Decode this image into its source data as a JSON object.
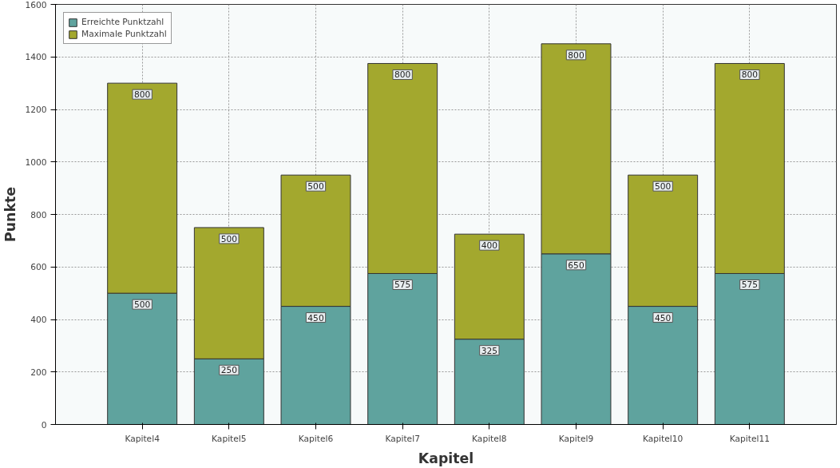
{
  "chart_data": {
    "type": "bar",
    "stacked": true,
    "xlabel": "Kapitel",
    "ylabel": "Punkte",
    "categories": [
      "Kapitel4",
      "Kapitel5",
      "Kapitel6",
      "Kapitel7",
      "Kapitel8",
      "Kapitel9",
      "Kapitel10",
      "Kapitel11"
    ],
    "series": [
      {
        "name": "Erreichte Punktzahl",
        "color": "#5fa39e",
        "values": [
          500,
          250,
          450,
          575,
          325,
          650,
          450,
          575
        ]
      },
      {
        "name": "Maximale Punktzahl",
        "color": "#a3a82e",
        "values": [
          800,
          500,
          500,
          800,
          400,
          800,
          500,
          800
        ]
      }
    ],
    "ylim": [
      0,
      1600
    ],
    "yticks": [
      0,
      200,
      400,
      600,
      800,
      1000,
      1200,
      1400,
      1600
    ],
    "grid": true,
    "legend": "top left",
    "data_labels": true
  }
}
